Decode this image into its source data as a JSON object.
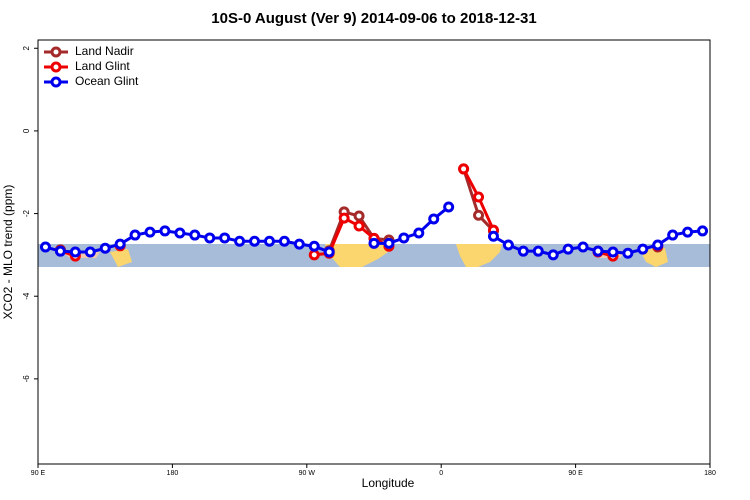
{
  "chart_data": {
    "type": "line",
    "title": "10S-0 August (Ver 9)   2014-09-06 to 2018-12-31",
    "x_label": "Longitude",
    "y_label": "XCO2 - MLO trend (ppm)",
    "x": [
      -265,
      -255,
      -245,
      -235,
      -225,
      -215,
      -205,
      -195,
      -185,
      -175,
      -165,
      -155,
      -145,
      -135,
      -125,
      -115,
      -105,
      -95,
      -85,
      -75,
      -65,
      -55,
      -45,
      -35,
      -25,
      -15,
      -5,
      5,
      15,
      25,
      35,
      45,
      55,
      65,
      75,
      85,
      95,
      105,
      115,
      125,
      135,
      145,
      155,
      165,
      175
    ],
    "series": [
      {
        "name": "Land Nadir",
        "color": "#a52a2a",
        "values": [
          null,
          -2.88,
          -2.98,
          null,
          null,
          -2.76,
          null,
          null,
          null,
          null,
          null,
          null,
          null,
          null,
          null,
          null,
          null,
          null,
          null,
          -2.9,
          -1.96,
          -2.06,
          -2.6,
          -2.64,
          null,
          null,
          null,
          null,
          -0.92,
          -2.04,
          -2.42,
          null,
          null,
          null,
          null,
          null,
          null,
          -2.91,
          -3.02,
          null,
          null,
          -2.81,
          null,
          null,
          null
        ]
      },
      {
        "name": "Land Glint",
        "color": "#ee0000",
        "values": [
          null,
          -2.9,
          -3.03,
          null,
          null,
          -2.78,
          null,
          null,
          null,
          null,
          null,
          null,
          null,
          null,
          null,
          null,
          null,
          null,
          -3.0,
          -2.96,
          -2.11,
          -2.3,
          -2.6,
          -2.79,
          null,
          null,
          null,
          null,
          -0.92,
          -1.6,
          -2.4,
          null,
          null,
          null,
          null,
          null,
          null,
          -2.93,
          -3.03,
          null,
          null,
          -2.78,
          null,
          null,
          null
        ]
      },
      {
        "name": "Ocean Glint",
        "color": "#0000ee",
        "values": [
          -2.81,
          -2.91,
          -2.93,
          -2.93,
          -2.84,
          -2.74,
          -2.52,
          -2.45,
          -2.42,
          -2.47,
          -2.52,
          -2.59,
          -2.59,
          -2.67,
          -2.67,
          -2.67,
          -2.67,
          -2.74,
          -2.79,
          -2.93,
          null,
          null,
          -2.72,
          -2.72,
          -2.59,
          -2.47,
          -2.13,
          -1.84,
          null,
          null,
          -2.55,
          -2.76,
          -2.91,
          -2.91,
          -3.0,
          -2.86,
          -2.81,
          -2.91,
          -2.93,
          -2.96,
          -2.86,
          -2.76,
          -2.52,
          -2.45,
          -2.42
        ]
      }
    ],
    "xlim": [
      -270,
      180
    ],
    "xticks": [
      {
        "value": -270,
        "label": "90 E"
      },
      {
        "value": -180,
        "label": "180"
      },
      {
        "value": -90,
        "label": "90 W"
      },
      0,
      {
        "value": 90,
        "label": "90 E"
      },
      180
    ],
    "ylim": [
      -8.06,
      2.2
    ],
    "yticks": [
      2,
      0,
      -2,
      -4,
      -6
    ],
    "legend": "top-left"
  }
}
